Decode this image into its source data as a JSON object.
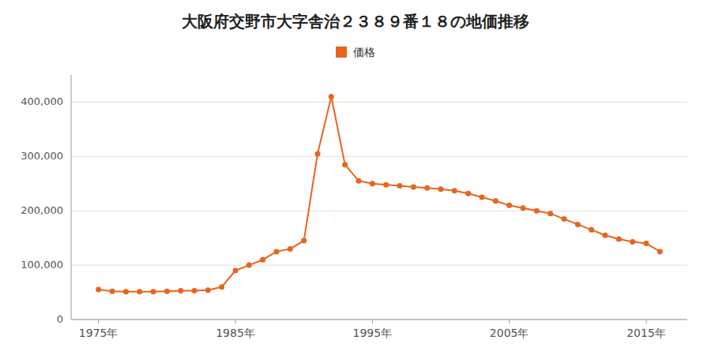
{
  "chart_data": {
    "type": "line",
    "title": "大阪府交野市大字舎治２３８９番１８の地価推移",
    "x": [
      1975,
      1976,
      1977,
      1978,
      1979,
      1980,
      1981,
      1982,
      1983,
      1984,
      1985,
      1986,
      1987,
      1988,
      1989,
      1990,
      1991,
      1992,
      1993,
      1994,
      1995,
      1996,
      1997,
      1998,
      1999,
      2000,
      2001,
      2002,
      2003,
      2004,
      2005,
      2006,
      2007,
      2008,
      2009,
      2010,
      2011,
      2012,
      2013,
      2014,
      2015,
      2016
    ],
    "series": [
      {
        "name": "価格",
        "color": "#e8641e",
        "marker": "circle",
        "values": [
          55000,
          52000,
          51000,
          51000,
          51000,
          52000,
          53000,
          53000,
          54000,
          60000,
          90000,
          100000,
          110000,
          125000,
          130000,
          145000,
          305000,
          410000,
          285000,
          255000,
          250000,
          248000,
          246000,
          244000,
          242000,
          240000,
          237000,
          232000,
          225000,
          218000,
          210000,
          205000,
          200000,
          195000,
          185000,
          175000,
          165000,
          155000,
          148000,
          143000,
          140000,
          125000
        ]
      }
    ],
    "xlim": [
      1973,
      2018
    ],
    "xticks": [
      {
        "value": 1975,
        "label": "1975年"
      },
      {
        "value": 1985,
        "label": "1985年"
      },
      {
        "value": 1995,
        "label": "1995年"
      },
      {
        "value": 2005,
        "label": "2005年"
      },
      {
        "value": 2015,
        "label": "2015年"
      }
    ],
    "ylim": [
      0,
      450000
    ],
    "yticks": [
      0,
      {
        "value": 100000,
        "label": "100,000"
      },
      {
        "value": 200000,
        "label": "200,000"
      },
      {
        "value": 300000,
        "label": "300,000"
      },
      {
        "value": 400000,
        "label": "400,000"
      }
    ],
    "grid": true,
    "legend": "top"
  }
}
